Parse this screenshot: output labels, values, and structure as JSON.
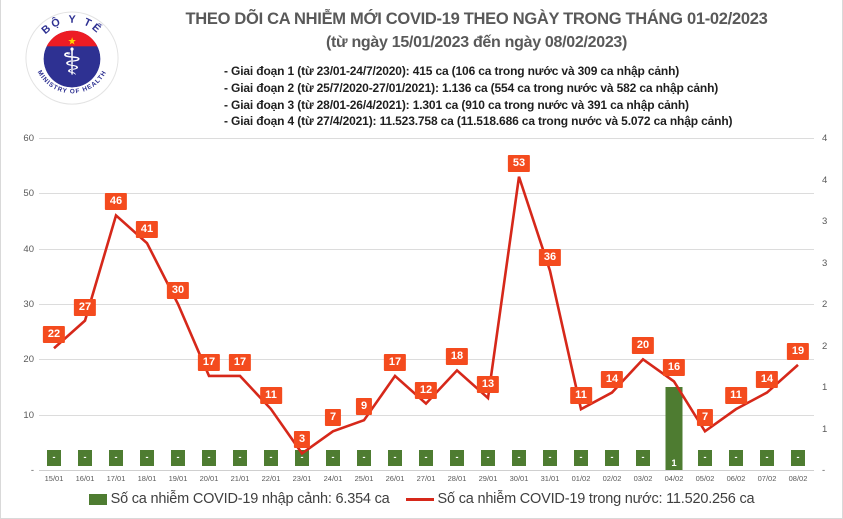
{
  "logo": {
    "top_text": "BỘ Y TẾ",
    "bottom_text": "MINISTRY OF HEALTH",
    "star_glyph": "★",
    "medical_glyph": "⚕"
  },
  "header": {
    "title": "THEO DÕI CA NHIỄM MỚI COVID-19 THEO NGÀY TRONG THÁNG 01-02/2023",
    "subtitle": "(từ ngày 15/01/2023 đến ngày 08/02/2023)",
    "bullets": [
      "- Giai đoạn 1 (từ 23/01-24/7/2020): 415 ca (106 ca trong nước và 309 ca nhập cảnh)",
      "- Giai đoạn 2 (từ 25/7/2020-27/01/2021): 1.136 ca (554 ca trong nước và 582 ca nhập cảnh)",
      "- Giai đoạn 3 (từ 28/01-26/4/2021): 1.301 ca (910 ca trong nước và 391 ca nhập cảnh)",
      "- Giai đoạn 4 (từ 27/4/2021): 11.523.758 ca (11.518.686 ca trong nước và 5.072 ca nhập cảnh)"
    ]
  },
  "chart_data": {
    "type": "combo-bar-line",
    "title": "THEO DÕI CA NHIỄM MỚI COVID-19 THEO NGÀY TRONG THÁNG 01-02/2023",
    "subtitle": "(từ ngày 15/01/2023 đến ngày 08/02/2023)",
    "categories": [
      "15/01",
      "16/01",
      "17/01",
      "18/01",
      "19/01",
      "20/01",
      "21/01",
      "22/01",
      "23/01",
      "24/01",
      "25/01",
      "26/01",
      "27/01",
      "28/01",
      "29/01",
      "30/01",
      "31/01",
      "01/02",
      "02/02",
      "03/02",
      "04/02",
      "05/02",
      "06/02",
      "07/02",
      "08/02"
    ],
    "series": [
      {
        "name": "Số ca nhiễm COVID-19 nhập cảnh",
        "type": "bar",
        "axis": "right",
        "color": "#4e7c31",
        "values": [
          0,
          0,
          0,
          0,
          0,
          0,
          0,
          0,
          0,
          0,
          0,
          0,
          0,
          0,
          0,
          0,
          0,
          0,
          0,
          0,
          1,
          0,
          0,
          0,
          0
        ],
        "labels": [
          "-",
          "-",
          "-",
          "-",
          "-",
          "-",
          "-",
          "-",
          "-",
          "-",
          "-",
          "-",
          "-",
          "-",
          "-",
          "-",
          "-",
          "-",
          "-",
          "-",
          "1",
          "-",
          "-",
          "-",
          "-"
        ]
      },
      {
        "name": "Số ca nhiễm COVID-19 trong nước",
        "type": "line",
        "axis": "left",
        "color": "#d6281a",
        "label_fill": "#f44b1e",
        "values": [
          22,
          27,
          46,
          41,
          30,
          17,
          17,
          11,
          3,
          7,
          9,
          17,
          12,
          18,
          13,
          53,
          36,
          11,
          14,
          20,
          16,
          7,
          11,
          14,
          19
        ]
      }
    ],
    "left_axis": {
      "min": 0,
      "max": 60,
      "tick_labels_bottom_up": [
        "-",
        "10",
        "20",
        "30",
        "40",
        "50",
        "60"
      ]
    },
    "right_axis": {
      "min": 0,
      "max": 4,
      "tick_labels_bottom_up": [
        "-",
        "1",
        "1",
        "2",
        "2",
        "3",
        "3",
        "4",
        "4"
      ]
    },
    "grid": true,
    "legend_position": "bottom"
  },
  "legend": {
    "items": [
      {
        "label": "Số ca nhiễm COVID-19 nhập cảnh: 6.354 ca",
        "swatch": "green-square",
        "color": "#4e7c31"
      },
      {
        "label": "Số ca nhiễm COVID-19 trong nước: 11.520.256 ca",
        "swatch": "red-line",
        "color": "#d6281a"
      }
    ]
  },
  "colors": {
    "line": "#d6281a",
    "line_label_fill": "#f44b1e",
    "bar": "#4e7c31",
    "grid": "#dcdcdc",
    "axis_text": "#595959",
    "title_text": "#595959",
    "body_text": "#1f1f1f",
    "logo_blue": "#2e3192",
    "logo_red": "#ed1c24",
    "logo_star": "#ffd500"
  }
}
